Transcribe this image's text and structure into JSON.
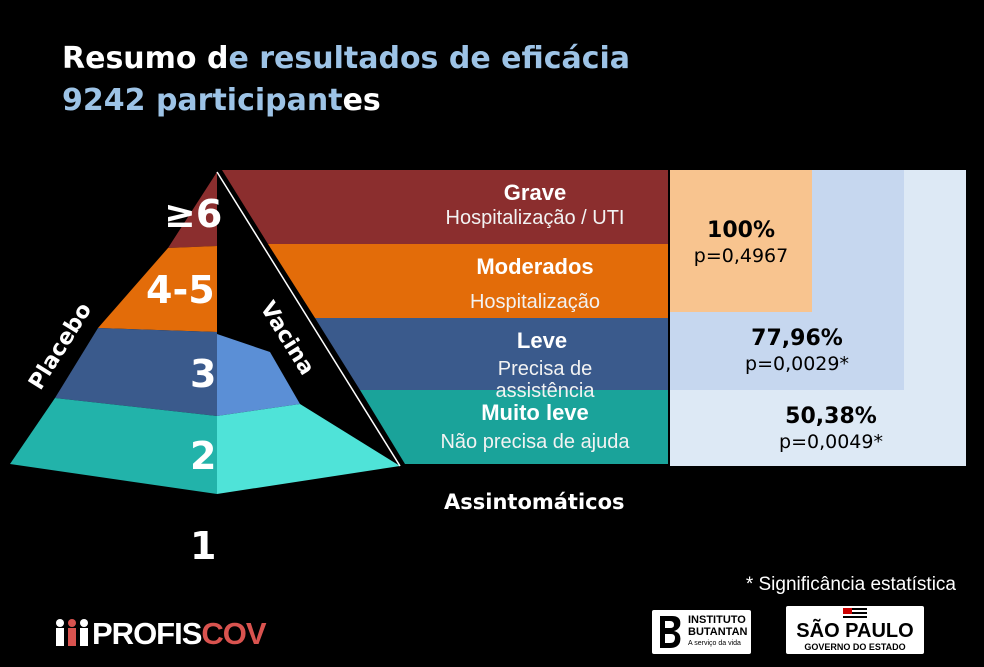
{
  "title": {
    "line1_a": "Resumo d",
    "line1_b": "e resultados de eficácia",
    "line2_a": "9242 participant",
    "line2_b": "es"
  },
  "pyramid": {
    "placebo_label": "Placebo",
    "vacina_label": "Vacina",
    "levels": [
      "≥6",
      "4-5",
      "3",
      "2",
      "1"
    ]
  },
  "bands": [
    {
      "main": "Grave",
      "sub": "Hospitalização / UTI",
      "color": "#8b2e2e"
    },
    {
      "main": "Moderados",
      "sub": "Hospitalização",
      "color": "#e36c09"
    },
    {
      "main": "Leve",
      "sub": "Precisa de assistência",
      "color": "#3a5a8c"
    },
    {
      "main": "Muito leve",
      "sub": "Não precisa de ajuda",
      "color": "#1aa39a"
    }
  ],
  "efficacy": [
    {
      "pct": "100%",
      "p": "p=0,4967",
      "color": "#f8c48f"
    },
    {
      "pct": "77,96%",
      "p": "p=0,0029*",
      "color": "#c6d7ef"
    },
    {
      "pct": "50,38%",
      "p": "p=0,0049*",
      "color": "#dde9f5"
    }
  ],
  "asymptomatic_label": "Assintomáticos",
  "footnote": "* Significância estatística",
  "logos": {
    "profiscov_a": "PROFIS",
    "profiscov_b": "COV",
    "butantan_1": "INSTITUTO",
    "butantan_2": "BUTANTAN",
    "butantan_3": "A serviço da vida",
    "sp_1": "SÃO PAULO",
    "sp_2": "GOVERNO DO ESTADO"
  }
}
